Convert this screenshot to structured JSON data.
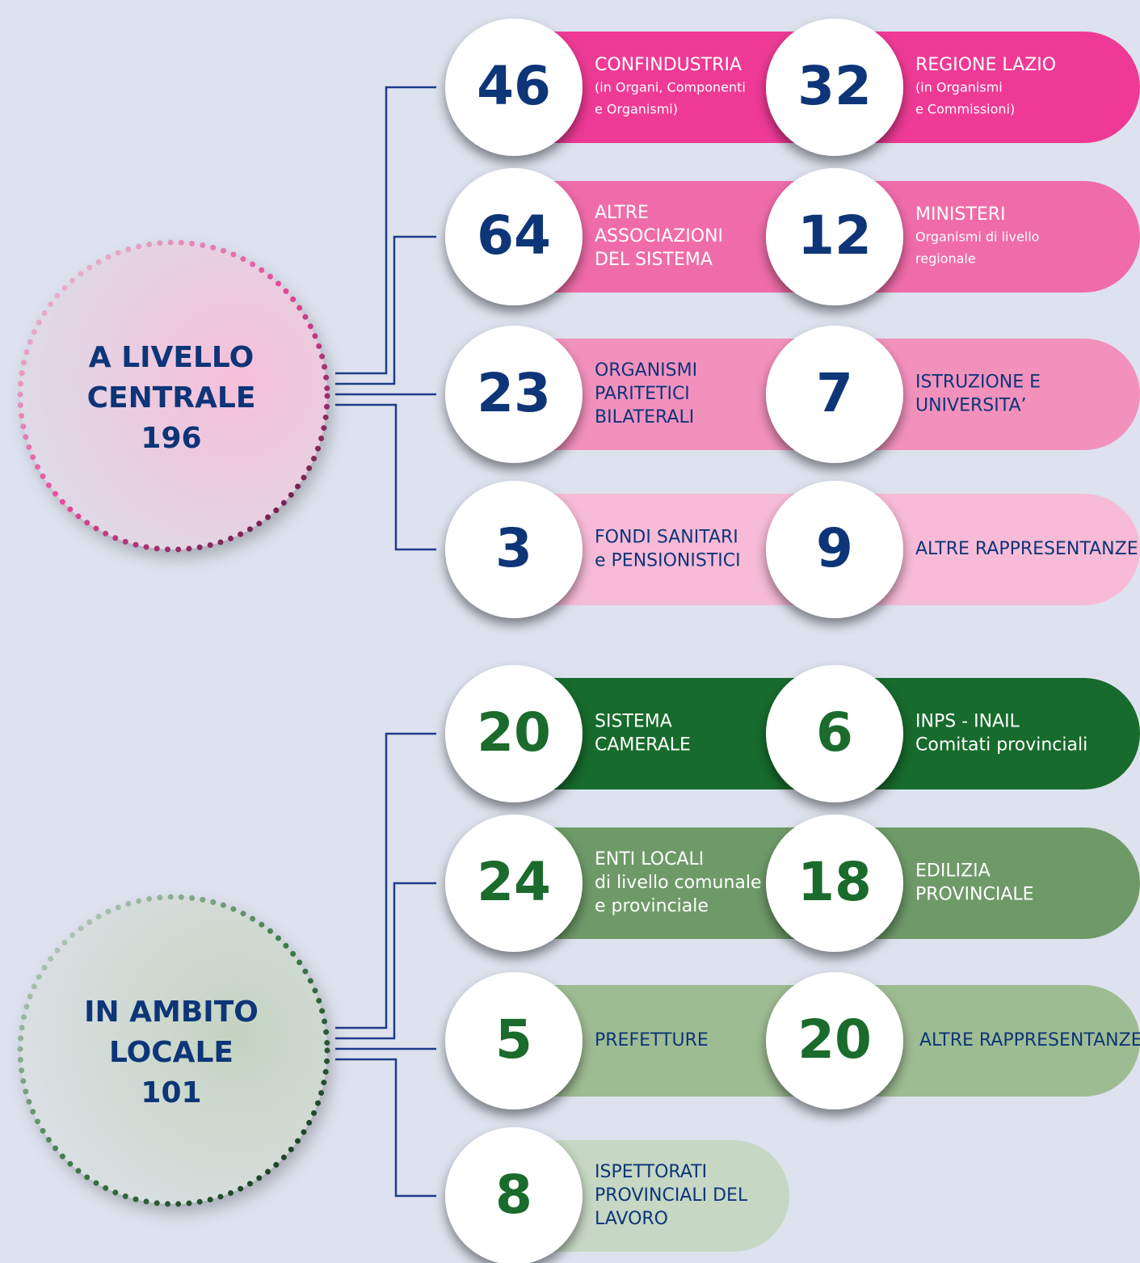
{
  "groups": [
    {
      "title": [
        "A LIVELLO",
        "CENTRALE",
        "196"
      ],
      "rows": [
        {
          "items": [
            {
              "number": 46,
              "label": [
                "CONFINDUSTRIA"
              ],
              "note": [
                "(in Organi, Componenti",
                "e Organismi)"
              ]
            },
            {
              "number": 32,
              "label": [
                "REGIONE LAZIO"
              ],
              "note": [
                "(in Organismi",
                "e Commissioni)"
              ]
            }
          ]
        },
        {
          "items": [
            {
              "number": 64,
              "label": [
                "ALTRE",
                "ASSOCIAZIONI",
                "DEL SISTEMA"
              ]
            },
            {
              "number": 12,
              "label": [
                "MINISTERI"
              ],
              "note": [
                "Organismi di livello",
                "regionale"
              ]
            }
          ]
        },
        {
          "items": [
            {
              "number": 23,
              "label": [
                "ORGANISMI",
                "PARITETICI",
                "BILATERALI"
              ]
            },
            {
              "number": 7,
              "label": [
                "ISTRUZIONE E",
                "UNIVERSITA’"
              ]
            }
          ]
        },
        {
          "items": [
            {
              "number": 3,
              "label": [
                "FONDI SANITARI",
                "e PENSIONISTICI"
              ]
            },
            {
              "number": 9,
              "label": [
                "ALTRE RAPPRESENTANZE"
              ]
            }
          ]
        }
      ]
    },
    {
      "title": [
        "IN AMBITO",
        "LOCALE",
        "101"
      ],
      "rows": [
        {
          "items": [
            {
              "number": 20,
              "label": [
                "SISTEMA",
                "CAMERALE"
              ]
            },
            {
              "number": 6,
              "label": [
                "INPS - INAIL",
                "Comitati provinciali"
              ]
            }
          ]
        },
        {
          "items": [
            {
              "number": 24,
              "label": [
                "ENTI LOCALI",
                "di livello comunale",
                "e provinciale"
              ]
            },
            {
              "number": 18,
              "label": [
                "EDILIZIA",
                "PROVINCIALE"
              ]
            }
          ]
        },
        {
          "items": [
            {
              "number": 5,
              "label": [
                "PREFETTURE"
              ]
            },
            {
              "number": 20,
              "label": [
                "ALTRE RAPPRESENTANZE"
              ]
            }
          ]
        },
        {
          "items": [
            {
              "number": 8,
              "label": [
                "ISPETTORATI",
                "PROVINCIALI DEL",
                "LAVORO"
              ]
            }
          ]
        }
      ]
    }
  ]
}
